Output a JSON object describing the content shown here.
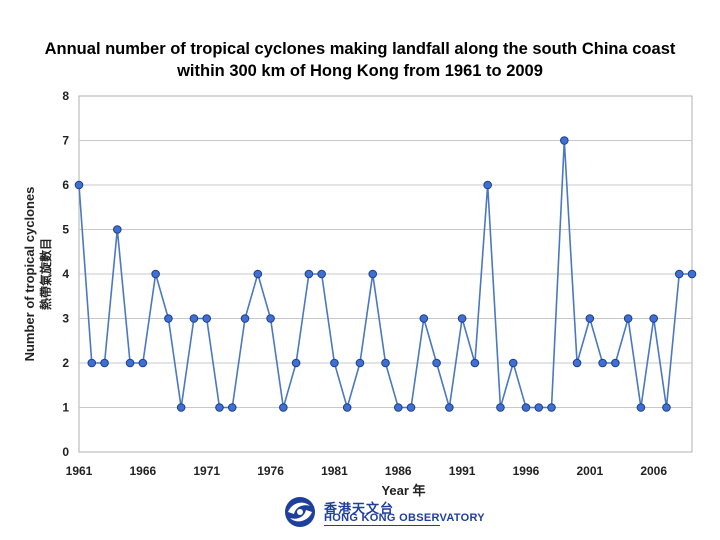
{
  "title": {
    "line1": "Annual number of tropical cyclones making landfall along the south China coast",
    "line2": "within 300 km of Hong Kong from 1961 to 2009"
  },
  "chart_data": {
    "type": "line",
    "title": "Annual number of tropical cyclones making landfall along the south China coast within 300 km of Hong Kong from 1961 to 2009",
    "xlabel": "Year 年",
    "ylabel": "Number of tropical cyclones",
    "ylabel_zh": "熱帶氣旋數目",
    "x_ticks": [
      "1961",
      "1966",
      "1971",
      "1976",
      "1981",
      "1986",
      "1991",
      "1996",
      "2001",
      "2006"
    ],
    "ylim": [
      0,
      8
    ],
    "y_ticks": [
      0,
      1,
      2,
      3,
      4,
      5,
      6,
      7,
      8
    ],
    "grid": true,
    "series": [
      {
        "x": [
          1961,
          1962,
          1963,
          1964,
          1965,
          1966,
          1967,
          1968,
          1969,
          1970,
          1971,
          1972,
          1973,
          1974,
          1975,
          1976,
          1977,
          1978,
          1979,
          1980,
          1981,
          1982,
          1983,
          1984,
          1985,
          1986,
          1987,
          1988,
          1989,
          1990,
          1991,
          1992,
          1993,
          1994,
          1995,
          1996,
          1997,
          1998,
          1999,
          2000,
          2001,
          2002,
          2003,
          2004,
          2005,
          2006,
          2007,
          2008,
          2009
        ],
        "values": [
          6,
          2,
          2,
          5,
          2,
          2,
          4,
          3,
          1,
          3,
          3,
          1,
          1,
          3,
          4,
          3,
          1,
          2,
          4,
          4,
          2,
          1,
          2,
          4,
          2,
          1,
          1,
          3,
          2,
          1,
          3,
          2,
          6,
          1,
          2,
          1,
          1,
          1,
          7,
          2,
          3,
          2,
          2,
          3,
          1,
          3,
          1,
          4,
          4
        ]
      }
    ],
    "colors": {
      "line": "#4a78c2",
      "marker_fill": "#3f6fd0",
      "marker_edge": "#1c3d8a",
      "grid": "#c8c8c8",
      "plot_border": "#b0b0b0"
    }
  },
  "logo": {
    "name_zh": "香港天文台",
    "name_en": "HONG KONG OBSERVATORY"
  }
}
